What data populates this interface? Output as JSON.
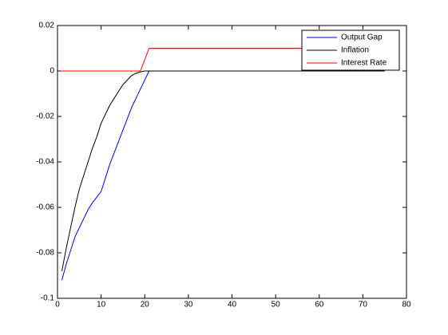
{
  "chart_data": {
    "type": "line",
    "x": [
      1,
      2,
      3,
      4,
      5,
      6,
      7,
      8,
      9,
      10,
      11,
      12,
      13,
      14,
      15,
      16,
      17,
      18,
      19,
      20,
      21,
      22,
      23,
      24,
      25,
      26,
      27,
      28,
      29,
      30,
      31,
      32,
      33,
      34,
      35,
      36,
      37,
      38,
      39,
      40,
      41,
      42,
      43,
      44,
      45,
      46,
      47,
      48,
      49,
      50,
      51,
      52,
      53,
      54,
      55,
      56,
      57,
      58,
      59,
      60,
      61,
      62,
      63,
      64,
      65,
      66,
      67,
      68,
      69,
      70,
      71,
      72,
      73,
      74,
      75
    ],
    "series": [
      {
        "name": "Output Gap",
        "color": "#0000ff",
        "values": [
          -0.092,
          -0.085,
          -0.079,
          -0.073,
          -0.069,
          -0.065,
          -0.061,
          -0.058,
          -0.0555,
          -0.053,
          -0.047,
          -0.041,
          -0.036,
          -0.031,
          -0.026,
          -0.021,
          -0.016,
          -0.012,
          -0.008,
          -0.004,
          0,
          0,
          0,
          0,
          0,
          0,
          0,
          0,
          0,
          0,
          0,
          0,
          0,
          0,
          0,
          0,
          0,
          0,
          0,
          0,
          0,
          0,
          0,
          0,
          0,
          0,
          0,
          0,
          0,
          0,
          0,
          0,
          0,
          0,
          0,
          0,
          0,
          0,
          0,
          0,
          0,
          0,
          0,
          0,
          0,
          0,
          0,
          0,
          0,
          0,
          0,
          0,
          0,
          0,
          0
        ]
      },
      {
        "name": "Inflation",
        "color": "#000000",
        "values": [
          -0.088,
          -0.078,
          -0.069,
          -0.06,
          -0.052,
          -0.046,
          -0.04,
          -0.034,
          -0.029,
          -0.023,
          -0.019,
          -0.015,
          -0.012,
          -0.009,
          -0.006,
          -0.004,
          -0.002,
          -0.001,
          -0.0004,
          0,
          0,
          0,
          0,
          0,
          0,
          0,
          0,
          0,
          0,
          0,
          0,
          0,
          0,
          0,
          0,
          0,
          0,
          0,
          0,
          0,
          0,
          0,
          0,
          0,
          0,
          0,
          0,
          0,
          0,
          0,
          0,
          0,
          0,
          0,
          0,
          0,
          0,
          0,
          0,
          0,
          0,
          0,
          0,
          0,
          0,
          0,
          0,
          0,
          0,
          0,
          0,
          0,
          0,
          0,
          0
        ]
      },
      {
        "name": "Interest Rate",
        "color": "#ff0000",
        "values": [
          0,
          0,
          0,
          0,
          0,
          0,
          0,
          0,
          0,
          0,
          0,
          0,
          0,
          0,
          0,
          0,
          0,
          0,
          0,
          0.005,
          0.01,
          0.01,
          0.01,
          0.01,
          0.01,
          0.01,
          0.01,
          0.01,
          0.01,
          0.01,
          0.01,
          0.01,
          0.01,
          0.01,
          0.01,
          0.01,
          0.01,
          0.01,
          0.01,
          0.01,
          0.01,
          0.01,
          0.01,
          0.01,
          0.01,
          0.01,
          0.01,
          0.01,
          0.01,
          0.01,
          0.01,
          0.01,
          0.01,
          0.01,
          0.01,
          0.01,
          0.01,
          0.01,
          0.01,
          0.01,
          0.01,
          0.01,
          0.01,
          0.01,
          0.01,
          0.01,
          0.01,
          0.01,
          0.01,
          0.01,
          0.01,
          0.01,
          0.01,
          0.01,
          0.01
        ]
      }
    ],
    "xlim": [
      0,
      80
    ],
    "xticks": [
      0,
      10,
      20,
      30,
      40,
      50,
      60,
      70,
      80
    ],
    "ylim": [
      -0.1,
      0.02
    ],
    "yticks": [
      -0.1,
      -0.08,
      -0.06,
      -0.04,
      -0.02,
      0,
      0.02
    ],
    "grid": false,
    "legend": "northeast"
  }
}
